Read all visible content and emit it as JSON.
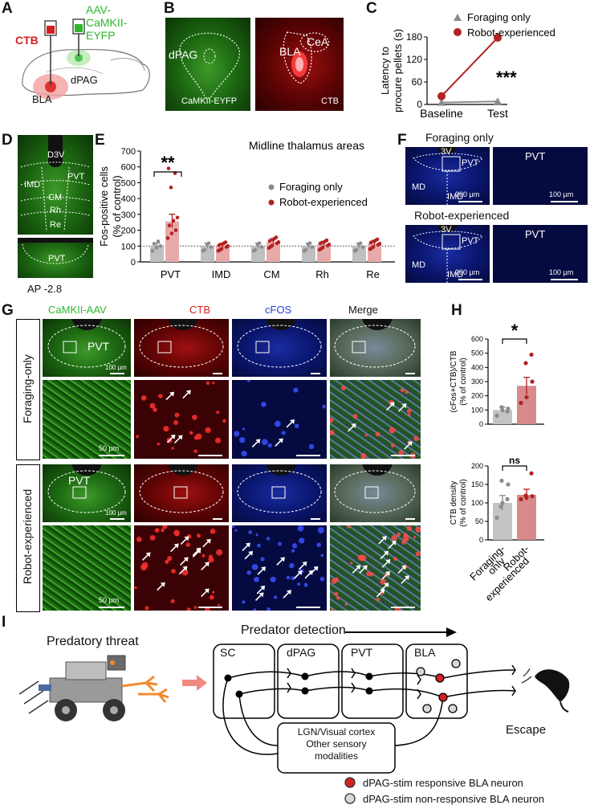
{
  "panel_labels": {
    "a": "A",
    "b": "B",
    "c": "C",
    "d": "D",
    "e": "E",
    "f": "F",
    "g": "G",
    "h": "H",
    "i": "I"
  },
  "panel_a": {
    "virus": "AAV-\nCaMKII-\nEYFP",
    "ctb": "CTB",
    "dpag": "dPAG",
    "bla": "BLA"
  },
  "panel_b": {
    "left_label": "dPAG",
    "left_caption": "CaMKII-EYFP",
    "right_bla": "BLA",
    "right_cea": "CeA",
    "right_caption": "CTB"
  },
  "panel_c": {
    "ylabel_1": "Latency to",
    "ylabel_2": "procure pellets (s)",
    "yticks": [
      "0",
      "60",
      "120",
      "180"
    ],
    "xticks": [
      "Baseline",
      "Test"
    ],
    "legend": [
      "Foraging only",
      "Robot-experienced"
    ],
    "sig": "***"
  },
  "panel_d": {
    "labels": [
      "D3V",
      "PVT",
      "IMD",
      "CM",
      "Rh",
      "Re"
    ],
    "lower": "PVT",
    "ap": "AP -2.8"
  },
  "panel_e": {
    "title": "Midline thalamus areas",
    "ylabel_1": "Fos-positive cells",
    "ylabel_2": "(% of control)",
    "yticks": [
      "0",
      "100",
      "200",
      "300",
      "400",
      "500",
      "600",
      "700"
    ],
    "legend": [
      "Foraging only",
      "Robot-experienced"
    ],
    "sig": "**"
  },
  "panel_f": {
    "top_title": "Foraging only",
    "bottom_title": "Robot-experienced",
    "labels": [
      "3V",
      "PVT",
      "MD",
      "IMD"
    ],
    "right": "PVT",
    "scale_200": "200 µm",
    "scale_100": "100 µm"
  },
  "panel_g": {
    "cols": [
      "CaMKII-AAV",
      "CTB",
      "cFOS",
      "Merge"
    ],
    "rows": [
      "Foraging-only",
      "Robot-experienced"
    ],
    "pvt": "PVT",
    "s100": "100 µm",
    "s50": "50 µm"
  },
  "panel_h": {
    "top_ylabel": [
      "(cFos+CTB)/CTB",
      "(% of control)"
    ],
    "top_yticks": [
      "0",
      "100",
      "200",
      "300",
      "400",
      "500",
      "600"
    ],
    "top_sig": "*",
    "bottom_ylabel": [
      "CTB density",
      "(% of control)"
    ],
    "bottom_yticks": [
      "0",
      "50",
      "100",
      "150",
      "200"
    ],
    "bottom_sig": "ns",
    "xticks": [
      "Foraging-\nonly",
      "Robot-\nexperienced"
    ]
  },
  "panel_i": {
    "threat": "Predatory threat",
    "detection": "Predator detection",
    "nodes": [
      "SC",
      "dPAG",
      "PVT",
      "BLA"
    ],
    "sensory": [
      "LGN/Visual cortex",
      "Other sensory",
      "modalities"
    ],
    "escape": "Escape",
    "legend": [
      "dPAG-stim responsive BLA neuron",
      "dPAG-stim non-responsive BLA neuron"
    ]
  },
  "colors": {
    "gray": "#8c8c8c",
    "red": "#b22222",
    "green": "#2fb52f",
    "ctb_red": "#d42020",
    "cfos_blue": "#2a3cd8"
  },
  "chart_data": [
    {
      "type": "line",
      "panel": "C",
      "x": [
        "Baseline",
        "Test"
      ],
      "ylim": [
        0,
        180
      ],
      "series": [
        {
          "name": "Foraging only",
          "values": [
            5,
            8
          ]
        },
        {
          "name": "Robot-experienced",
          "values": [
            22,
            178
          ]
        }
      ]
    },
    {
      "type": "bar",
      "panel": "E",
      "categories": [
        "PVT",
        "IMD",
        "CM",
        "Rh",
        "Re"
      ],
      "ylim": [
        0,
        700
      ],
      "series": [
        {
          "name": "Foraging only",
          "values": [
            100,
            100,
            100,
            100,
            100
          ]
        },
        {
          "name": "Robot-experienced",
          "values": [
            255,
            100,
            125,
            110,
            115
          ]
        }
      ]
    },
    {
      "type": "bar",
      "panel": "H-top",
      "categories": [
        "Foraging-only",
        "Robot-experienced"
      ],
      "ylim": [
        0,
        600
      ],
      "series": [
        {
          "values": [
            100,
            270
          ]
        }
      ]
    },
    {
      "type": "bar",
      "panel": "H-bottom",
      "categories": [
        "Foraging-only",
        "Robot-experienced"
      ],
      "ylim": [
        0,
        200
      ],
      "series": [
        {
          "values": [
            100,
            122
          ]
        }
      ]
    }
  ]
}
